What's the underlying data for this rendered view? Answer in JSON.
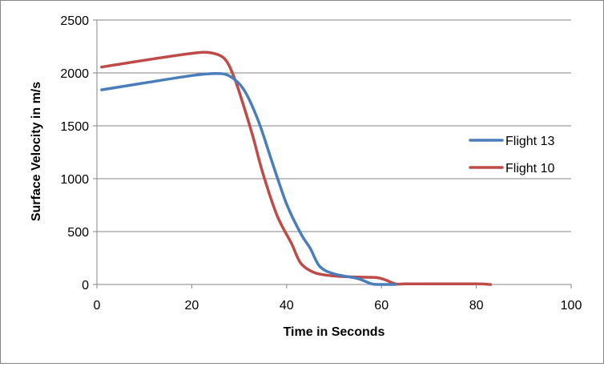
{
  "chart_data": {
    "type": "line",
    "title": "",
    "xlabel": "Time in Seconds",
    "ylabel": "Surface Velocity in m/s",
    "xlim": [
      0,
      100
    ],
    "ylim": [
      0,
      2500
    ],
    "xticks": [
      0,
      20,
      40,
      60,
      80,
      100
    ],
    "yticks": [
      0,
      500,
      1000,
      1500,
      2000,
      2500
    ],
    "grid": "horizontal",
    "legend_position": "right",
    "series": [
      {
        "name": "Flight 13",
        "color": "#4A7EBB",
        "x": [
          1,
          10,
          20,
          25,
          28,
          31,
          34,
          37,
          40,
          43,
          45,
          47,
          50,
          55,
          58,
          60,
          63
        ],
        "y": [
          1840,
          1905,
          1975,
          1995,
          1970,
          1840,
          1550,
          1150,
          760,
          480,
          340,
          170,
          100,
          55,
          5,
          0,
          0
        ]
      },
      {
        "name": "Flight 10",
        "color": "#BE4B48",
        "x": [
          1,
          10,
          20,
          24,
          27,
          29,
          31,
          33,
          35,
          38,
          41,
          43,
          46,
          50,
          55,
          59,
          61,
          63,
          65,
          70,
          80,
          83
        ],
        "y": [
          2055,
          2120,
          2185,
          2190,
          2130,
          1950,
          1680,
          1380,
          1050,
          650,
          390,
          200,
          110,
          80,
          70,
          65,
          40,
          5,
          5,
          5,
          5,
          0
        ]
      }
    ]
  }
}
